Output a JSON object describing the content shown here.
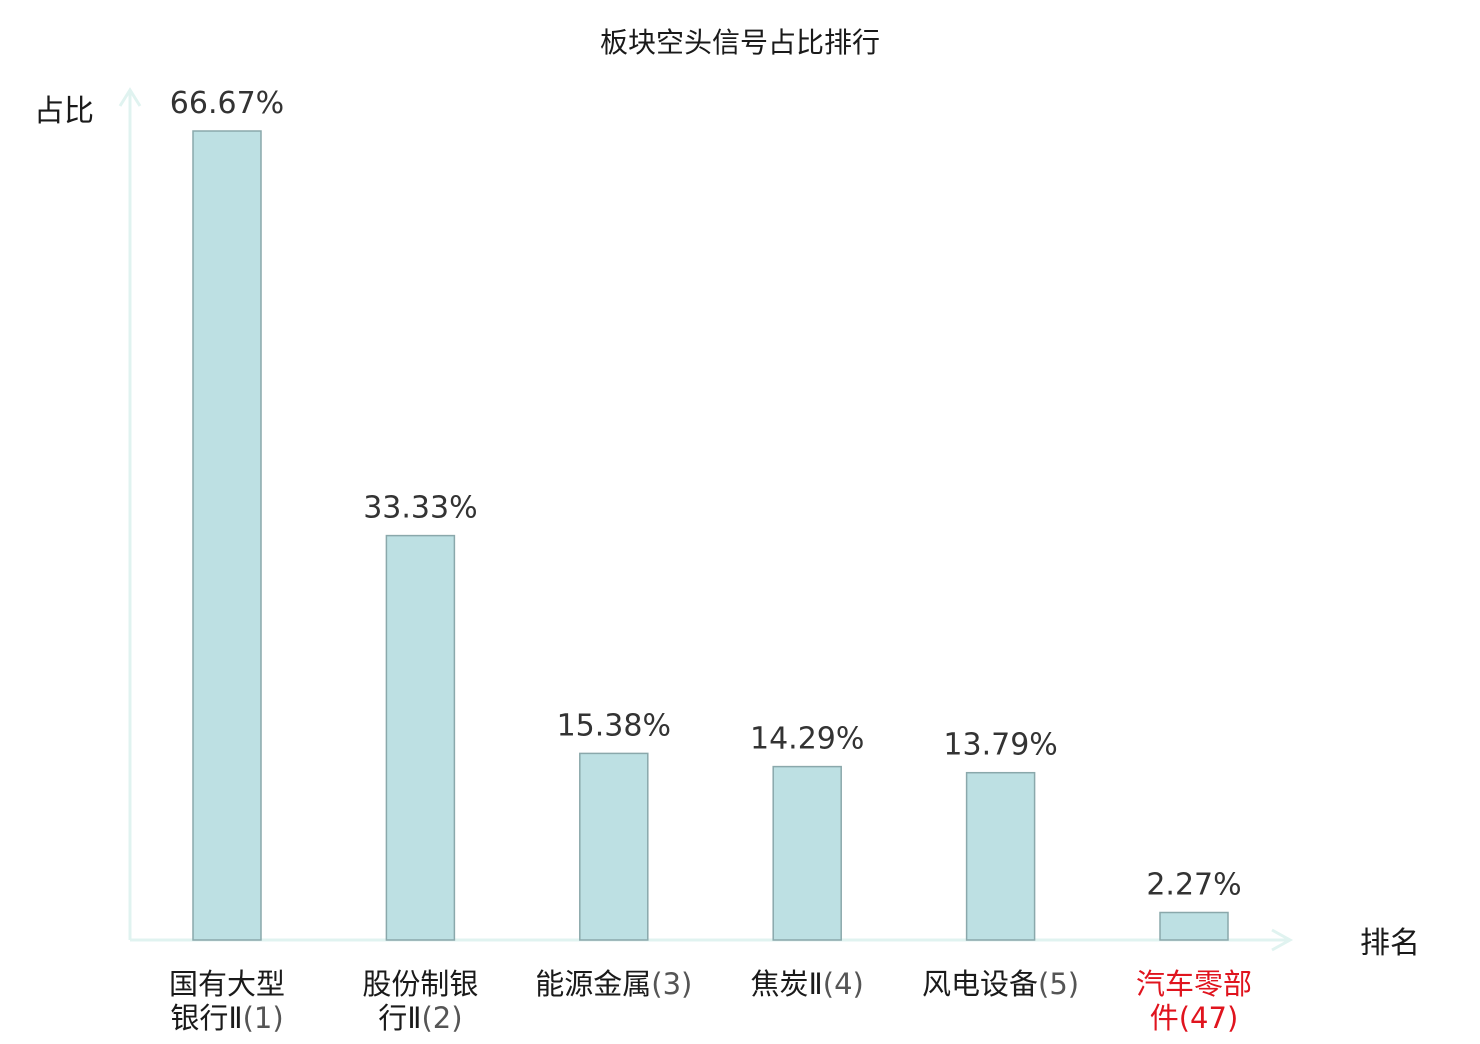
{
  "chart_data": {
    "type": "bar",
    "title": "板块空头信号占比排行",
    "ylabel": "占比",
    "xlabel": "排名",
    "ylim": [
      0,
      70
    ],
    "grid": false,
    "categories": [
      {
        "lines": [
          "国有大型",
          "银行Ⅱ"
        ],
        "rank": "(1)",
        "highlight": false
      },
      {
        "lines": [
          "股份制银",
          "行Ⅱ"
        ],
        "rank": "(2)",
        "highlight": false
      },
      {
        "lines": [
          "能源金属"
        ],
        "rank": "(3)",
        "highlight": false
      },
      {
        "lines": [
          "焦炭Ⅱ"
        ],
        "rank": "(4)",
        "highlight": false
      },
      {
        "lines": [
          "风电设备"
        ],
        "rank": "(5)",
        "highlight": false
      },
      {
        "lines": [
          "汽车零部",
          "件"
        ],
        "rank": "(47)",
        "highlight": true
      }
    ],
    "values": [
      66.67,
      33.33,
      15.38,
      14.29,
      13.79,
      2.27
    ],
    "value_labels": [
      "66.67%",
      "33.33%",
      "15.38%",
      "14.29%",
      "13.79%",
      "2.27%"
    ],
    "colors": {
      "bar_fill": "#bde0e3",
      "bar_stroke": "#8aa8ab",
      "axis": "#e0f3f0",
      "label": "#1a1a1a",
      "rank_label": "#555555",
      "highlight": "#e0141e"
    }
  }
}
